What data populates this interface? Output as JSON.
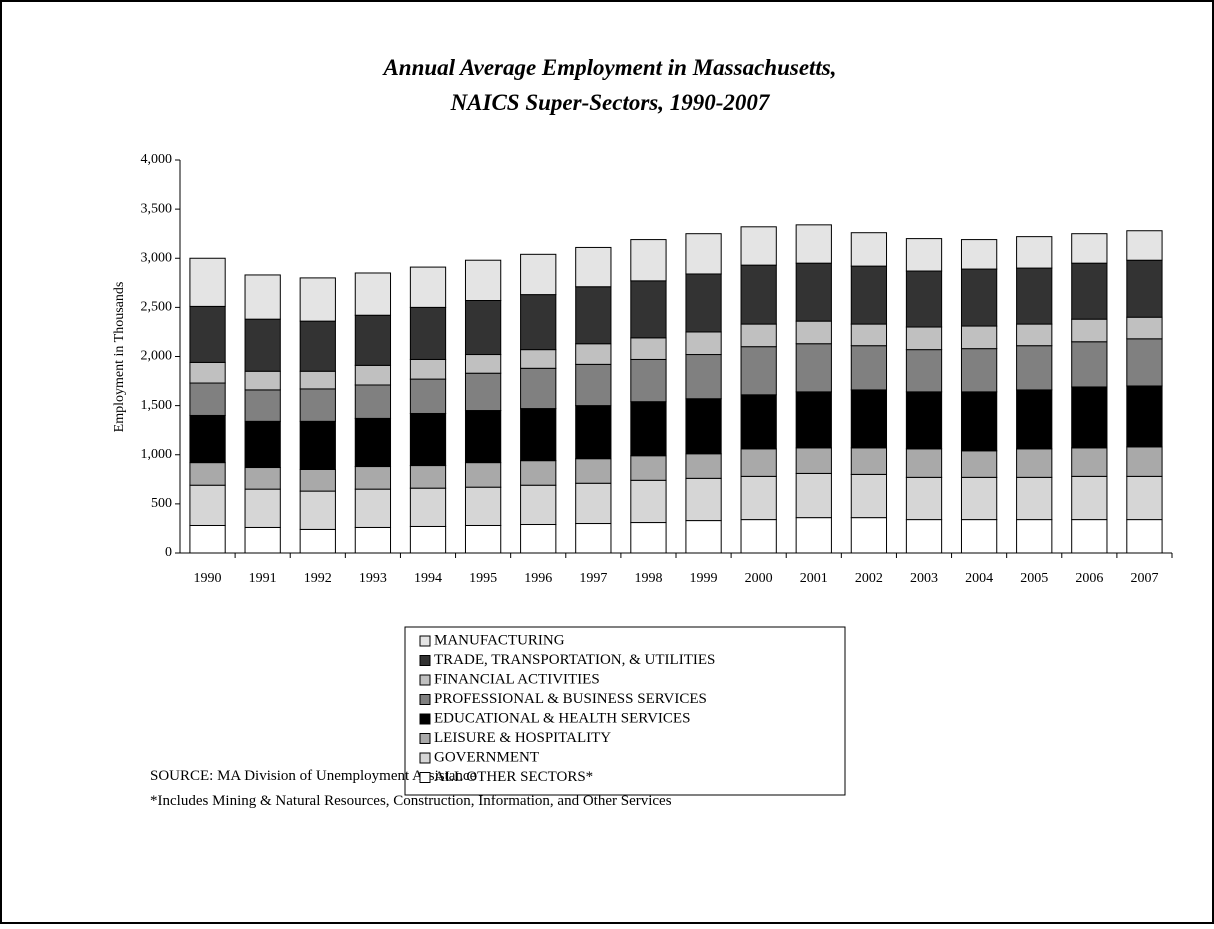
{
  "chart_data": {
    "type": "stacked_bar",
    "title": [
      "Annual Average Employment in Massachusetts,",
      "NAICS Super-Sectors, 1990-2007"
    ],
    "y_label": "Employment in Thousands",
    "source": "SOURCE:  MA Division of Unemployment Assistance",
    "footnote": "*Includes Mining & Natural Resources, Construction, Information, and Other Services",
    "categories": [
      "1990",
      "1991",
      "1992",
      "1993",
      "1994",
      "1995",
      "1996",
      "1997",
      "1998",
      "1999",
      "2000",
      "2001",
      "2002",
      "2003",
      "2004",
      "2005",
      "2006",
      "2007"
    ],
    "ylim": [
      0,
      4000
    ],
    "yticks": [
      0,
      500,
      {
        "value": 1000,
        "label": "1,000"
      },
      {
        "value": 1500,
        "label": "1,500"
      },
      {
        "value": 2000,
        "label": "2,000"
      },
      {
        "value": 2500,
        "label": "2,500"
      },
      {
        "value": 3000,
        "label": "3,000"
      },
      {
        "value": 3500,
        "label": "3,500"
      },
      {
        "value": 4000,
        "label": "4,000"
      }
    ],
    "series": [
      {
        "name": "MANUFACTURING",
        "color": "#e4e4e4",
        "values": [
          490,
          450,
          440,
          430,
          410,
          410,
          410,
          400,
          420,
          410,
          390,
          390,
          340,
          330,
          300,
          320,
          300,
          300
        ]
      },
      {
        "name": "TRADE, TRANSPORTATION, & UTILITIES",
        "color": "#333333",
        "values": [
          570,
          530,
          510,
          510,
          530,
          550,
          560,
          580,
          580,
          590,
          600,
          590,
          590,
          570,
          580,
          570,
          570,
          580
        ]
      },
      {
        "name": "FINANCIAL ACTIVITIES",
        "color": "#c0c0c0",
        "values": [
          210,
          190,
          180,
          200,
          200,
          190,
          190,
          210,
          220,
          230,
          230,
          230,
          220,
          230,
          230,
          220,
          230,
          220
        ]
      },
      {
        "name": "PROFESSIONAL & BUSINESS SERVICES",
        "color": "#808080",
        "values": [
          330,
          320,
          330,
          340,
          350,
          380,
          410,
          420,
          430,
          450,
          490,
          490,
          450,
          430,
          440,
          450,
          460,
          480
        ]
      },
      {
        "name": "EDUCATIONAL & HEALTH SERVICES",
        "color": "#000000",
        "values": [
          480,
          470,
          490,
          490,
          530,
          530,
          530,
          540,
          550,
          560,
          550,
          570,
          590,
          580,
          600,
          600,
          620,
          620
        ]
      },
      {
        "name": "LEISURE & HOSPITALITY",
        "color": "#a9a9a9",
        "values": [
          230,
          220,
          220,
          230,
          230,
          250,
          250,
          250,
          250,
          250,
          280,
          260,
          270,
          290,
          270,
          290,
          290,
          300
        ]
      },
      {
        "name": "GOVERNMENT",
        "color": "#d6d6d6",
        "values": [
          410,
          390,
          390,
          390,
          390,
          390,
          400,
          410,
          430,
          430,
          440,
          450,
          440,
          430,
          430,
          430,
          440,
          440
        ]
      },
      {
        "name": "ALL OTHER SECTORS*",
        "color": "#ffffff",
        "values": [
          280,
          260,
          240,
          260,
          270,
          280,
          290,
          300,
          310,
          330,
          340,
          360,
          360,
          340,
          340,
          340,
          340,
          340
        ]
      }
    ]
  }
}
